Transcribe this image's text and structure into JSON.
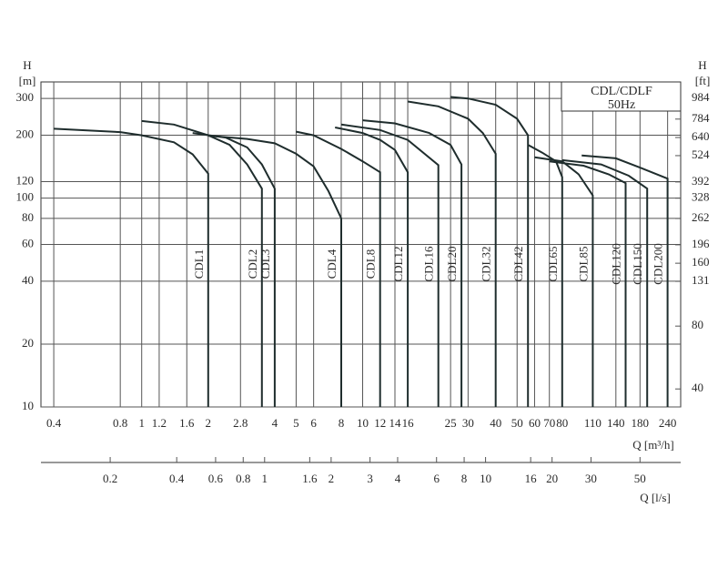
{
  "chart_data": {
    "type": "line",
    "title": "CDL/CDLF",
    "subtitle": "50Hz",
    "y_label": "H",
    "y_unit": "[m]",
    "y2_label": "H",
    "y2_unit": "[ft]",
    "x_label": "Q  [m³/h]",
    "x2_label": "Q  [l/s]",
    "log_x": true,
    "log_y": true,
    "grid": true,
    "color": "#1f2d2d",
    "xlim": [
      0.35,
      275
    ],
    "ylim": [
      10,
      360
    ],
    "y2lim": [
      32.8,
      1181
    ],
    "x2lim": [
      0.0972,
      76.4
    ],
    "xticks": [
      0.4,
      0.8,
      1,
      1.2,
      1.6,
      2,
      2.8,
      4,
      5,
      6,
      8,
      10,
      12,
      14,
      16,
      25,
      30,
      40,
      50,
      60,
      70,
      80,
      110,
      140,
      180,
      240
    ],
    "x2ticks": [
      0.2,
      0.4,
      0.6,
      0.8,
      1,
      1.6,
      2,
      3,
      4,
      6,
      8,
      10,
      16,
      20,
      30,
      50
    ],
    "yticks": [
      10,
      20,
      40,
      60,
      80,
      100,
      120,
      200,
      300
    ],
    "y2ticks": [
      40,
      80,
      131,
      160,
      196,
      262,
      328,
      392,
      524,
      640,
      784,
      984
    ],
    "series": [
      {
        "name": "CDL1",
        "x": [
          0.4,
          0.8,
          1,
          1.4,
          1.7,
          2,
          2
        ],
        "values": [
          215,
          207,
          200,
          185,
          162,
          131,
          10
        ]
      },
      {
        "name": "CDL2",
        "x": [
          1,
          1.4,
          2,
          2.5,
          3,
          3.5,
          3.5
        ],
        "values": [
          234,
          225,
          200,
          180,
          145,
          111,
          10
        ]
      },
      {
        "name": "CDL3",
        "x": [
          1.7,
          2.4,
          3,
          3.5,
          4,
          4
        ],
        "values": [
          205,
          195,
          175,
          145,
          111,
          10
        ]
      },
      {
        "name": "CDL4",
        "x": [
          2,
          3,
          4,
          5,
          6,
          7,
          8,
          8
        ],
        "values": [
          199,
          192,
          183,
          163,
          142,
          108,
          80,
          10
        ]
      },
      {
        "name": "CDL8",
        "x": [
          5,
          6,
          8,
          10,
          12,
          12
        ],
        "values": [
          208,
          200,
          172,
          150,
          133,
          10
        ]
      },
      {
        "name": "CDL12",
        "x": [
          7.5,
          10,
          12,
          14,
          16,
          16
        ],
        "values": [
          218,
          205,
          190,
          170,
          133,
          10
        ]
      },
      {
        "name": "CDL16",
        "x": [
          8,
          12,
          16,
          22,
          22
        ],
        "values": [
          225,
          212,
          190,
          144,
          10
        ]
      },
      {
        "name": "CDL20",
        "x": [
          10,
          14,
          20,
          25,
          28,
          28
        ],
        "values": [
          236,
          228,
          205,
          180,
          145,
          10
        ]
      },
      {
        "name": "CDL32",
        "x": [
          16,
          22,
          30,
          35,
          40,
          40
        ],
        "values": [
          290,
          275,
          240,
          205,
          163,
          10
        ]
      },
      {
        "name": "CDL42",
        "x": [
          25,
          30,
          40,
          50,
          56,
          56
        ],
        "values": [
          305,
          300,
          280,
          240,
          200,
          10
        ]
      },
      {
        "name": "CDL65",
        "x": [
          56,
          65,
          75,
          80,
          80
        ],
        "values": [
          180,
          165,
          150,
          126,
          10
        ]
      },
      {
        "name": "CDL85",
        "x": [
          60,
          80,
          95,
          110,
          110
        ],
        "values": [
          157,
          150,
          130,
          103,
          10
        ]
      },
      {
        "name": "CDL120",
        "x": [
          70,
          100,
          130,
          155,
          155
        ],
        "values": [
          150,
          143,
          130,
          118,
          10
        ]
      },
      {
        "name": "CDL150",
        "x": [
          80,
          120,
          160,
          194,
          194
        ],
        "values": [
          152,
          145,
          128,
          111,
          10
        ]
      },
      {
        "name": "CDL200",
        "x": [
          98,
          140,
          180,
          240,
          240
        ],
        "values": [
          160,
          155,
          140,
          124,
          10
        ]
      }
    ]
  }
}
